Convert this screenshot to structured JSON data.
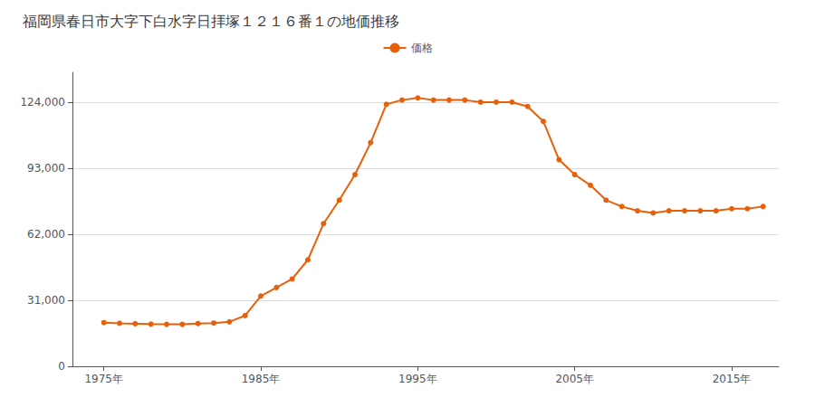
{
  "chart_data": {
    "type": "line",
    "title": "福岡県春日市大字下白水字日拝塚１２１６番１の地価推移",
    "x": [
      1975,
      1976,
      1977,
      1978,
      1979,
      1980,
      1981,
      1982,
      1983,
      1984,
      1985,
      1986,
      1987,
      1988,
      1989,
      1990,
      1991,
      1992,
      1993,
      1994,
      1995,
      1996,
      1997,
      1998,
      1999,
      2000,
      2001,
      2002,
      2003,
      2004,
      2005,
      2006,
      2007,
      2008,
      2009,
      2010,
      2011,
      2012,
      2013,
      2014,
      2015,
      2016,
      2017
    ],
    "series": [
      {
        "name": "価格",
        "color": "#E8600A",
        "marker": "circle",
        "values": [
          20500,
          20200,
          20000,
          19800,
          19700,
          19700,
          20100,
          20300,
          20900,
          23800,
          33000,
          37000,
          41000,
          50000,
          67000,
          78000,
          90000,
          105000,
          123000,
          125000,
          126000,
          125000,
          125000,
          125000,
          124000,
          124000,
          124000,
          122000,
          115000,
          97000,
          90000,
          85000,
          78000,
          75000,
          73000,
          72000,
          73000,
          73000,
          73000,
          73000,
          74000,
          74000,
          75000
        ]
      }
    ],
    "xlim": [
      1973,
      2018
    ],
    "xticks": [
      {
        "value": 1975,
        "label": "1975年"
      },
      {
        "value": 1985,
        "label": "1985年"
      },
      {
        "value": 1995,
        "label": "1995年"
      },
      {
        "value": 2005,
        "label": "2005年"
      },
      {
        "value": 2015,
        "label": "2015年"
      }
    ],
    "ylim": [
      0,
      138000
    ],
    "yticks": [
      0,
      {
        "value": 31000,
        "label": "31,000"
      },
      {
        "value": 62000,
        "label": "62,000"
      },
      {
        "value": 93000,
        "label": "93,000"
      },
      {
        "value": 124000,
        "label": "124,000"
      }
    ],
    "grid": "y",
    "legend": "top"
  }
}
